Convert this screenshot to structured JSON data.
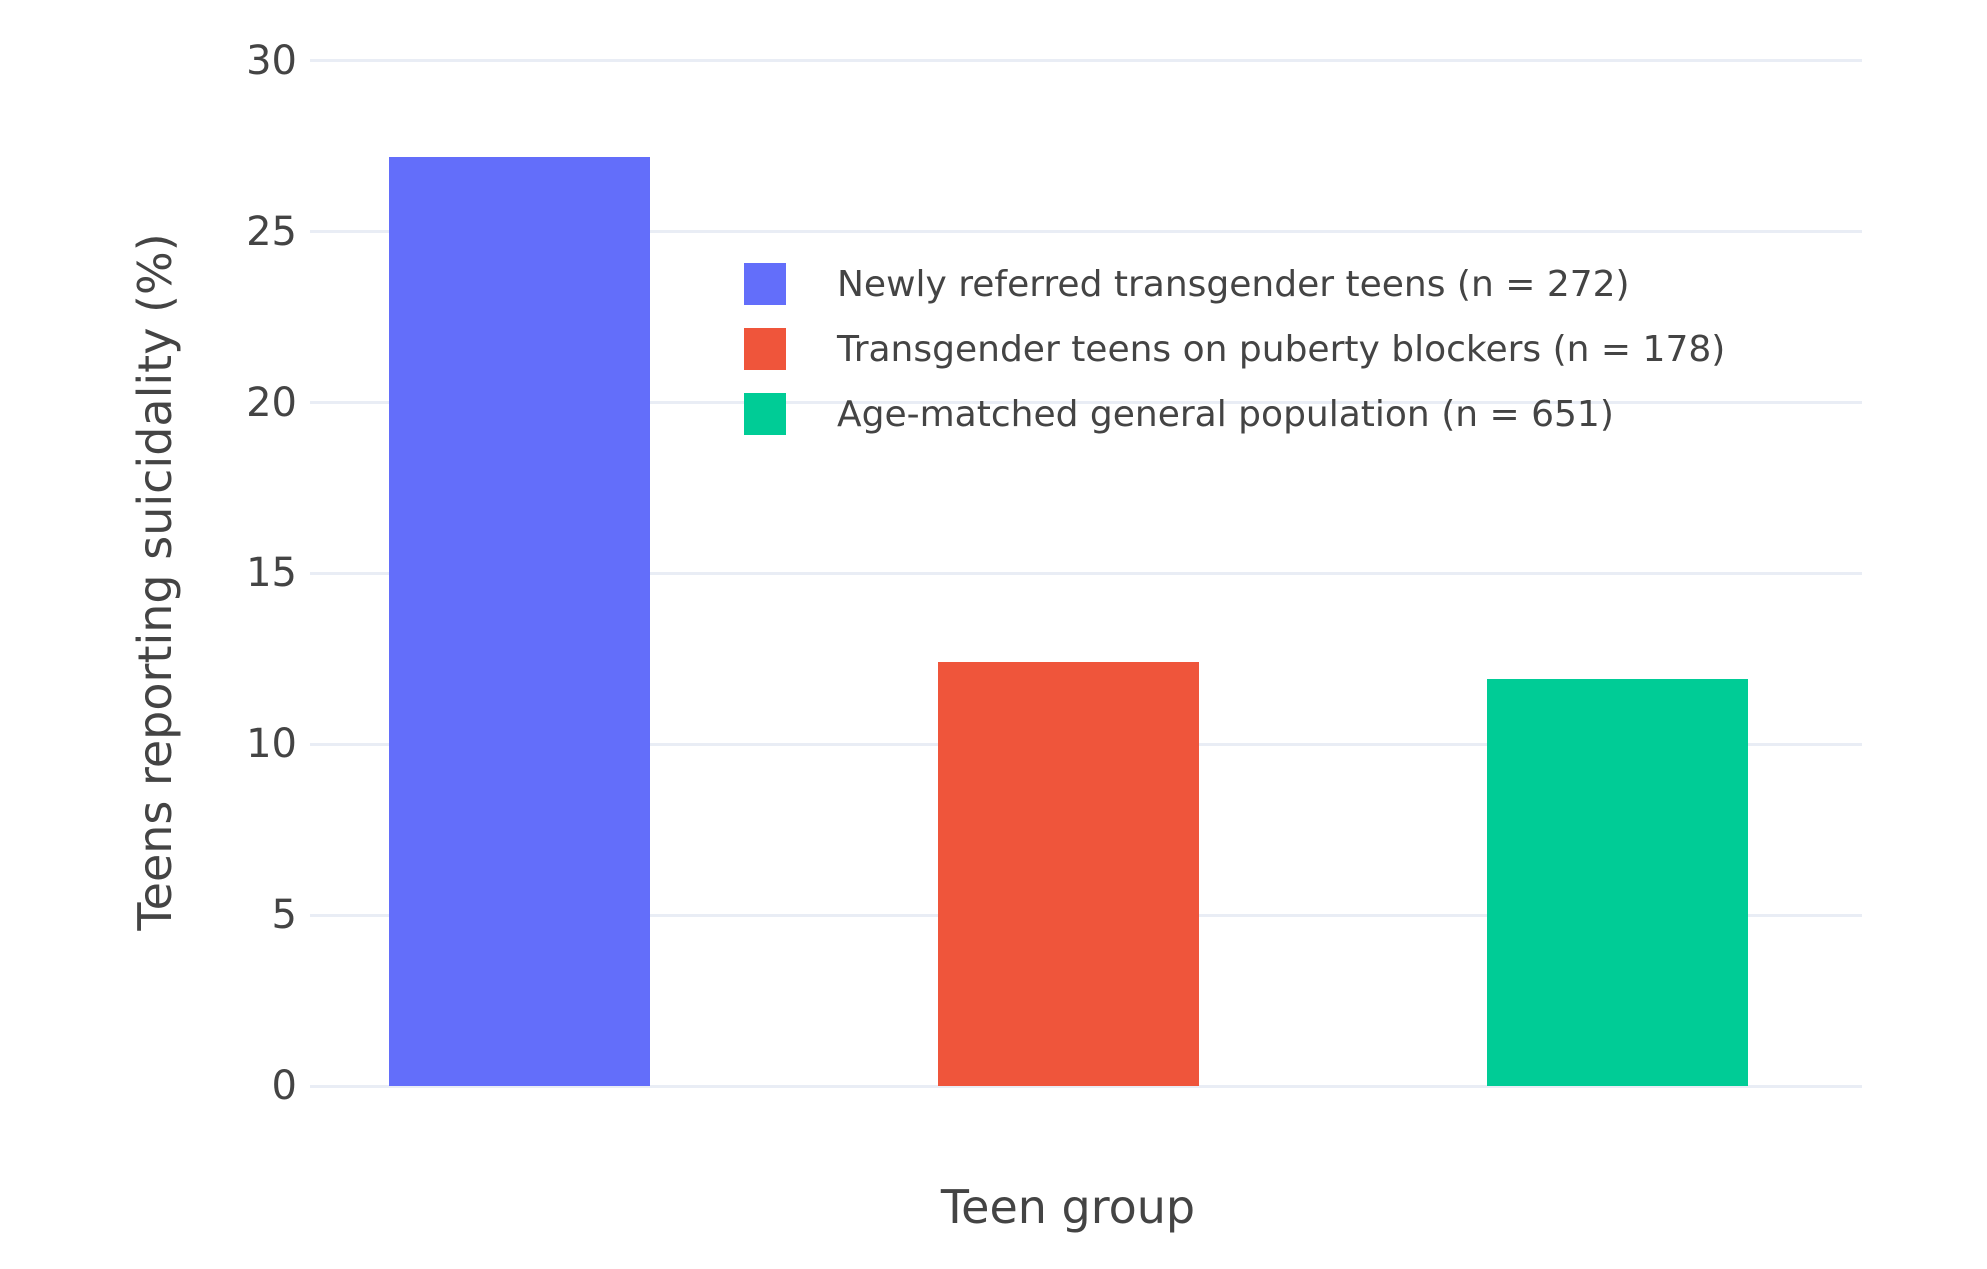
{
  "chart_data": {
    "type": "bar",
    "title": "",
    "xlabel": "Teen group",
    "ylabel": "Teens reporting suicidality (%)",
    "categories": [
      "Newly referred transgender teens (n = 272)",
      "Transgender teens on puberty blockers (n = 178)",
      "Age-matched general population (n = 651)"
    ],
    "values": [
      27.2,
      12.4,
      11.9
    ],
    "colors": [
      "#636EFA",
      "#EF553B",
      "#00CC96"
    ],
    "ylim": [
      0,
      30
    ],
    "yticks": [
      0,
      5,
      10,
      15,
      20,
      25,
      30
    ],
    "grid": "horizontal-on",
    "background_color": "#FFFFFF",
    "grid_color": "#E9EDF5",
    "text_color": "#444444",
    "legend": {
      "position": "inside-top-center",
      "entries": [
        "Newly referred transgender teens (n = 272)",
        "Transgender teens on puberty blockers (n = 178)",
        "Age-matched general population (n = 651)"
      ]
    }
  }
}
